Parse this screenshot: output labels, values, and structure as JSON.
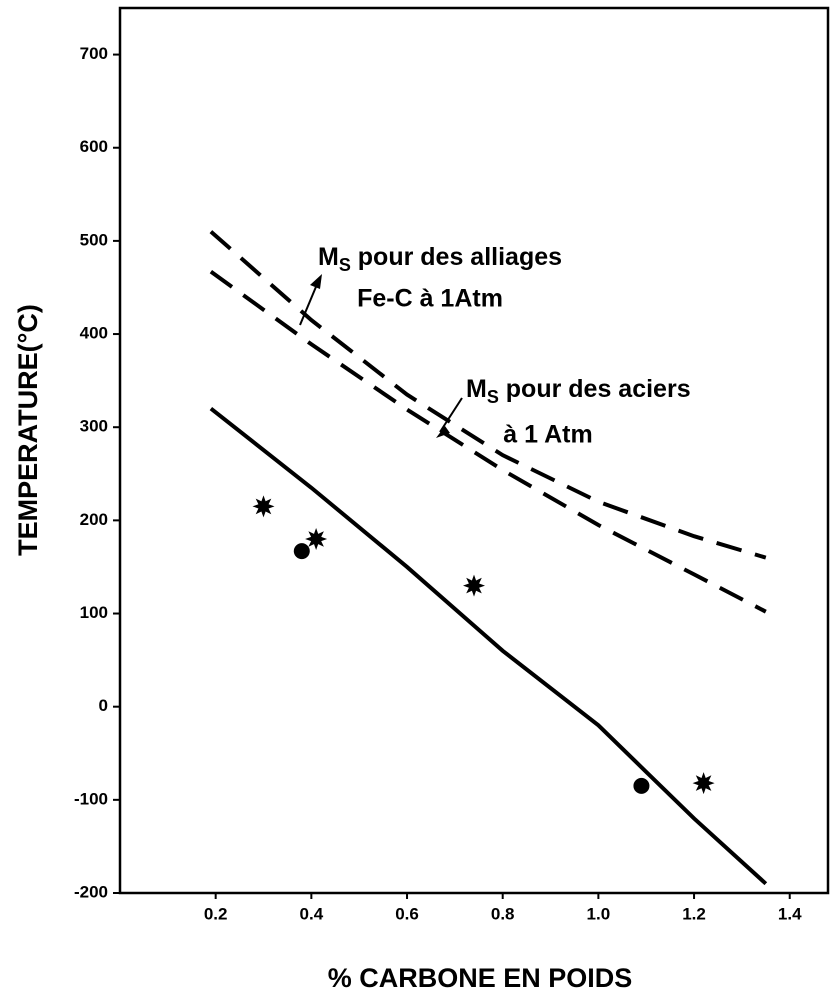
{
  "chart_data": {
    "type": "line",
    "xlabel": "% CARBONE EN POIDS",
    "ylabel": "TEMPERATURE(°C)",
    "xlim": [
      0,
      1.48
    ],
    "ylim": [
      -200,
      750
    ],
    "xticks": [
      0.2,
      0.4,
      0.6,
      0.8,
      {
        "value": 1,
        "label": "1.0"
      },
      1.2,
      1.4
    ],
    "yticks": [
      -200,
      -100,
      0,
      100,
      200,
      300,
      400,
      500,
      600,
      700
    ],
    "series": [
      {
        "style": "dashed",
        "color": "#000000",
        "x": [
          0.19,
          0.4,
          0.6,
          0.8,
          1.0,
          1.2,
          1.35
        ],
        "values": [
          510,
          415,
          335,
          270,
          220,
          183,
          160
        ]
      },
      {
        "style": "dashed",
        "color": "#000000",
        "x": [
          0.19,
          0.4,
          0.6,
          0.8,
          1.0,
          1.2,
          1.35
        ],
        "values": [
          467,
          389,
          319,
          254,
          195,
          142,
          102
        ]
      },
      {
        "style": "solid",
        "color": "#000000",
        "x": [
          0.19,
          0.4,
          0.6,
          0.8,
          1.0,
          1.1,
          1.2,
          1.35
        ],
        "values": [
          320,
          235,
          150,
          60,
          -20,
          -70,
          -120,
          -190
        ]
      },
      {
        "style": "star",
        "color": "#000000",
        "x": [
          0.3,
          0.41,
          0.74,
          1.22
        ],
        "values": [
          215,
          180,
          130,
          -82
        ]
      },
      {
        "style": "circle",
        "color": "#000000",
        "x": [
          0.38,
          1.09
        ],
        "values": [
          167,
          -85
        ]
      }
    ],
    "annotations": [
      {
        "main": "M",
        "sub": "S",
        "line1": " pour  des alliages",
        "line2": "Fe-C à 1Atm"
      },
      {
        "main": "M",
        "sub": "S",
        "line1": " pour des aciers",
        "line2": "à 1 Atm"
      }
    ]
  }
}
